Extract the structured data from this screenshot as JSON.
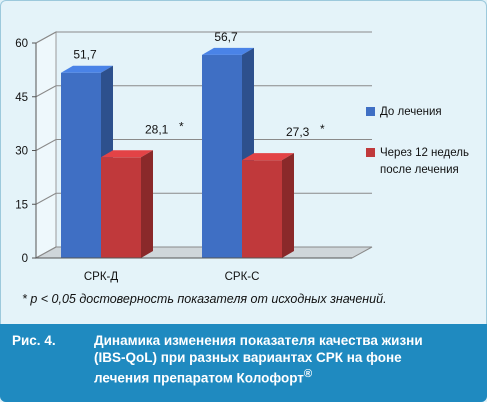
{
  "chart_data": {
    "type": "bar",
    "categories": [
      "СРК-Д",
      "СРК-С"
    ],
    "series": [
      {
        "name": "До лечения",
        "values": [
          51.7,
          56.7
        ],
        "labels": [
          "51,7",
          "56,7"
        ],
        "color": "#3f6fc4"
      },
      {
        "name": "Через 12 недель после лечения",
        "values": [
          28.1,
          27.3
        ],
        "labels": [
          "28,1",
          "27,3"
        ],
        "color": "#c0393b"
      }
    ],
    "label_marks": [
      "*",
      "*"
    ],
    "ylim": [
      0,
      60
    ],
    "yticks": [
      "0",
      "15",
      "30",
      "45",
      "60"
    ],
    "legend_lines": [
      [
        "До лечения"
      ],
      [
        "Через 12 недель",
        "после лечения"
      ]
    ],
    "legend_position": "right",
    "grid": true
  },
  "footnote": "* p < 0,05 достоверность показателя от исходных значений.",
  "caption": {
    "number": "Рис. 4.",
    "lines": [
      "Динамика изменения показателя качества жизни",
      "(IBS-QoL) при разных вариантах СРК на фоне",
      "лечения препаратом Колофорт"
    ],
    "superscript": "®"
  }
}
